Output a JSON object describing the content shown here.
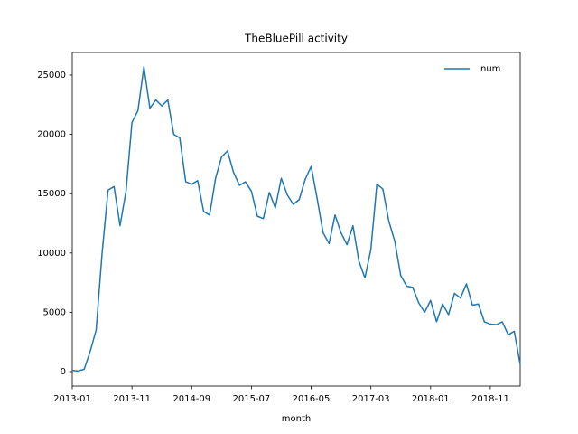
{
  "chart_data": {
    "type": "line",
    "title": "TheBluePill activity",
    "x_label": "month",
    "categories": [
      "2013-01",
      null,
      null,
      null,
      null,
      null,
      null,
      null,
      null,
      null,
      "2013-11",
      null,
      null,
      null,
      null,
      null,
      null,
      null,
      null,
      null,
      "2014-09",
      null,
      null,
      null,
      null,
      null,
      null,
      null,
      null,
      null,
      "2015-07",
      null,
      null,
      null,
      null,
      null,
      null,
      null,
      null,
      null,
      "2016-05",
      null,
      null,
      null,
      null,
      null,
      null,
      null,
      null,
      null,
      "2017-03",
      null,
      null,
      null,
      null,
      null,
      null,
      null,
      null,
      null,
      "2018-01",
      null,
      null,
      null,
      null,
      null,
      null,
      null,
      null,
      null,
      "2018-11",
      null,
      null,
      null,
      null,
      null
    ],
    "series": [
      {
        "name": "num",
        "color": "#1f77b4",
        "values": [
          100,
          50,
          200,
          1700,
          3500,
          10000,
          15300,
          15600,
          12300,
          15200,
          21000,
          22000,
          25700,
          22200,
          22900,
          22400,
          22900,
          20000,
          19700,
          16000,
          15800,
          16100,
          13500,
          13200,
          16300,
          18100,
          18600,
          16800,
          15700,
          16000,
          15200,
          13100,
          12900,
          15100,
          13800,
          16300,
          14900,
          14100,
          14500,
          16200,
          17300,
          14600,
          11700,
          10800,
          13200,
          11700,
          10700,
          12300,
          9300,
          7900,
          10300,
          15800,
          15400,
          12700,
          11000,
          8100,
          7200,
          7100,
          5800,
          5000,
          6000,
          4200,
          5700,
          4800,
          6600,
          6200,
          7400,
          5600,
          5700,
          4200,
          4000,
          3950,
          4200,
          3100,
          3400,
          600
        ]
      }
    ],
    "ylim": [
      -1220,
      26905
    ],
    "yticks": [
      0,
      5000,
      10000,
      15000,
      20000,
      25000
    ],
    "legend": "upper right",
    "grid": false
  }
}
